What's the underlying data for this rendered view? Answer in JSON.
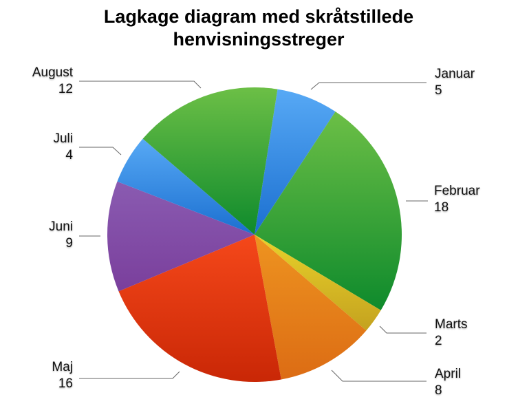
{
  "chart_data": {
    "type": "pie",
    "title": "Lagkage diagram med skråtstillede henvisningsstreger",
    "categories": [
      "Januar",
      "Februar",
      "Marts",
      "April",
      "Maj",
      "Juni",
      "Juli",
      "August"
    ],
    "values": [
      5,
      18,
      2,
      8,
      16,
      9,
      4,
      12
    ],
    "colors": {
      "Januar": [
        "#57a9f5",
        "#1b6fd0"
      ],
      "Februar": [
        "#6cbf46",
        "#0e8a2c"
      ],
      "Marts": [
        "#e9d22a",
        "#c4a21f"
      ],
      "April": [
        "#ee9420",
        "#dc6c14"
      ],
      "Maj": [
        "#f5481a",
        "#c92706"
      ],
      "Juni": [
        "#8a5bb1",
        "#7a3f9c"
      ],
      "Juli": [
        "#57a9f5",
        "#1b6fd0"
      ],
      "August": [
        "#6cbf46",
        "#0e8a2c"
      ]
    },
    "legend": "none",
    "labels": "callouts with angled leader lines",
    "start_angle_deg": 9,
    "direction": "clockwise"
  },
  "labels": {
    "januar": {
      "name": "Januar",
      "value": "5"
    },
    "februar": {
      "name": "Februar",
      "value": "18"
    },
    "marts": {
      "name": "Marts",
      "value": "2"
    },
    "april": {
      "name": "April",
      "value": "8"
    },
    "maj": {
      "name": "Maj",
      "value": "16"
    },
    "juni": {
      "name": "Juni",
      "value": "9"
    },
    "juli": {
      "name": "Juli",
      "value": "4"
    },
    "august": {
      "name": "August",
      "value": "12"
    }
  }
}
